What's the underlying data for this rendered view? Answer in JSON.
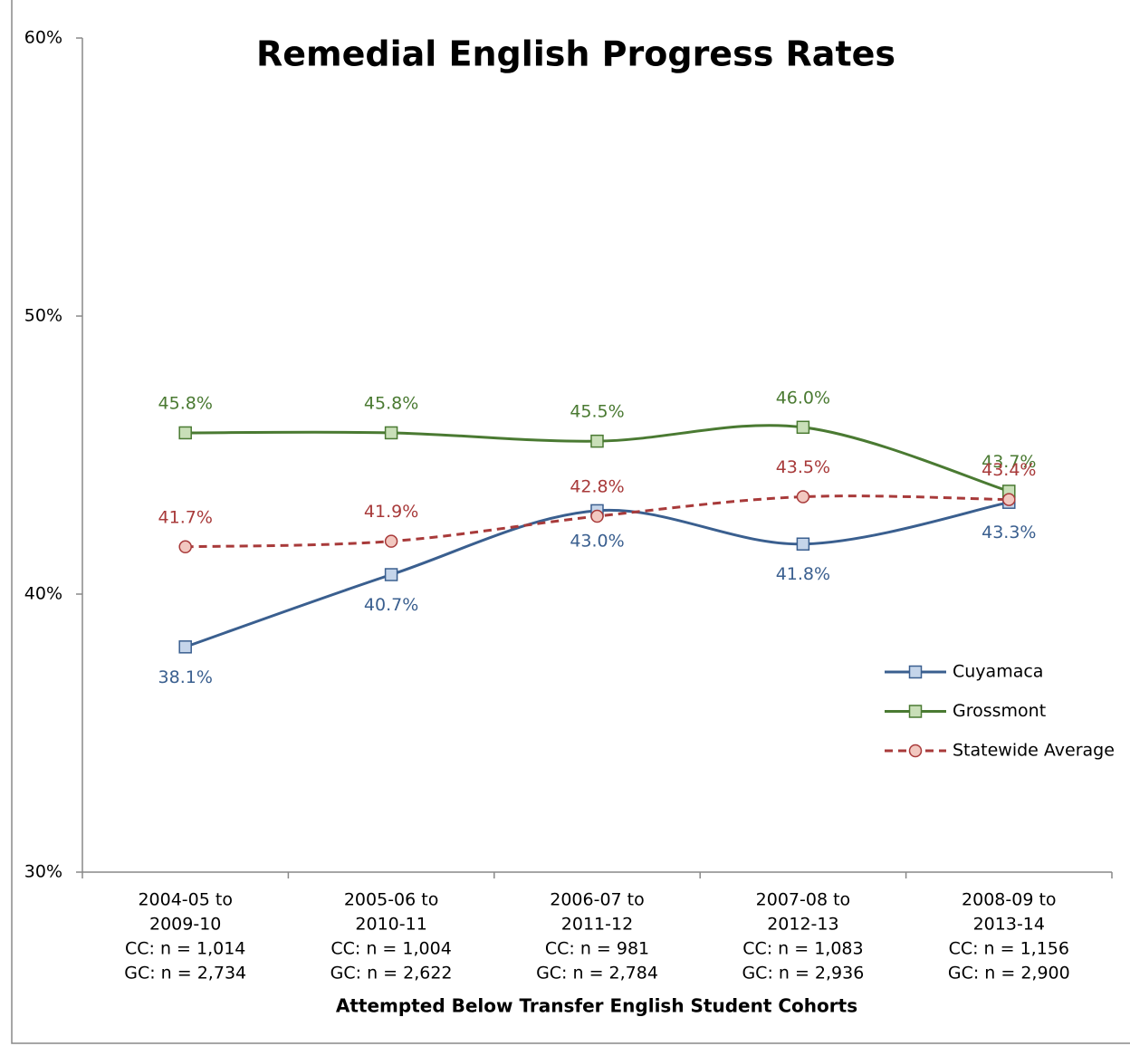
{
  "chart_data": {
    "type": "line",
    "title": "Remedial English Progress Rates",
    "x_label": "Attempted Below Transfer English Student Cohorts",
    "categories": [
      [
        "2004-05 to",
        "2009-10",
        "CC: n = 1,014",
        "GC: n = 2,734"
      ],
      [
        "2005-06 to",
        "2010-11",
        "CC: n = 1,004",
        "GC: n = 2,622"
      ],
      [
        "2006-07 to",
        "2011-12",
        "CC: n = 981",
        "GC: n = 2,784"
      ],
      [
        "2007-08 to",
        "2012-13",
        "CC: n = 1,083",
        "GC: n = 2,936"
      ],
      [
        "2008-09 to",
        "2013-14",
        "CC: n = 1,156",
        "GC: n = 2,900"
      ]
    ],
    "series": [
      {
        "name": "Cuyamaca",
        "color": "#3a5f8f",
        "marker_fill": "#c5d5ea",
        "marker": "square",
        "dash": false,
        "label_position": "below",
        "values": [
          38.1,
          40.7,
          43.0,
          41.8,
          43.3
        ],
        "value_labels": [
          "38.1%",
          "40.7%",
          "43.0%",
          "41.8%",
          "43.3%"
        ]
      },
      {
        "name": "Grossmont",
        "color": "#4a7a32",
        "marker_fill": "#c9dfb8",
        "marker": "square",
        "dash": false,
        "label_position": "above",
        "values": [
          45.8,
          45.8,
          45.5,
          46.0,
          43.7
        ],
        "value_labels": [
          "45.8%",
          "45.8%",
          "45.5%",
          "46.0%",
          "43.7%"
        ]
      },
      {
        "name": "Statewide Average",
        "color": "#a83a3a",
        "marker_fill": "#f2c8c0",
        "marker": "circle",
        "dash": true,
        "label_position": "above",
        "values": [
          41.7,
          41.9,
          42.8,
          43.5,
          43.4
        ],
        "value_labels": [
          "41.7%",
          "41.9%",
          "42.8%",
          "43.5%",
          "43.4%"
        ]
      }
    ],
    "ylim": [
      30,
      60
    ],
    "yticks": [
      {
        "value": 30,
        "label": "30%"
      },
      {
        "value": 40,
        "label": "40%"
      },
      {
        "value": 50,
        "label": "50%"
      },
      {
        "value": 60,
        "label": "60%"
      }
    ],
    "legend": "right"
  }
}
